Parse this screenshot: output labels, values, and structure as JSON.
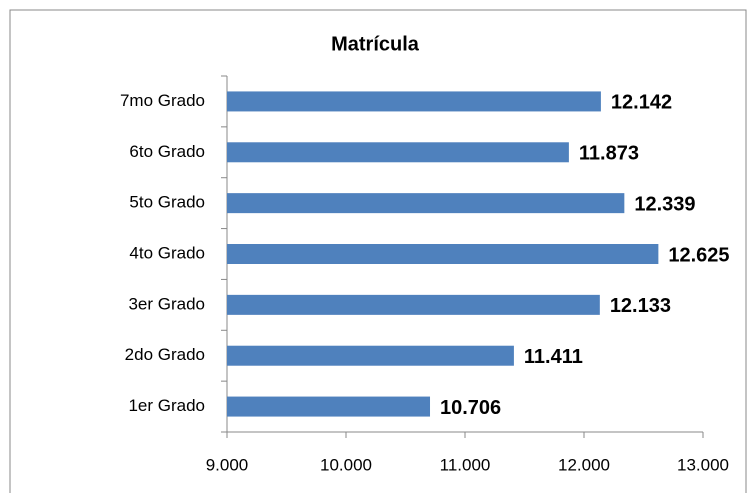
{
  "chart_data": {
    "type": "bar",
    "orientation": "horizontal",
    "title": "Matrícula",
    "categories": [
      "1er Grado",
      "2do Grado",
      "3er Grado",
      "4to Grado",
      "5to Grado",
      "6to Grado",
      "7mo Grado"
    ],
    "values": [
      10706,
      11411,
      12133,
      12625,
      12339,
      11873,
      12142
    ],
    "value_labels": [
      "10.706",
      "11.411",
      "12.133",
      "12.625",
      "12.339",
      "11.873",
      "12.142"
    ],
    "color": "#4f81bd",
    "xlim": [
      9000,
      13000
    ],
    "xticks": [
      {
        "value": 9000,
        "label": "9.000"
      },
      {
        "value": 10000,
        "label": "10.000"
      },
      {
        "value": 11000,
        "label": "11.000"
      },
      {
        "value": 12000,
        "label": "12.000"
      },
      {
        "value": 13000,
        "label": "13.000"
      }
    ],
    "grid": false
  }
}
